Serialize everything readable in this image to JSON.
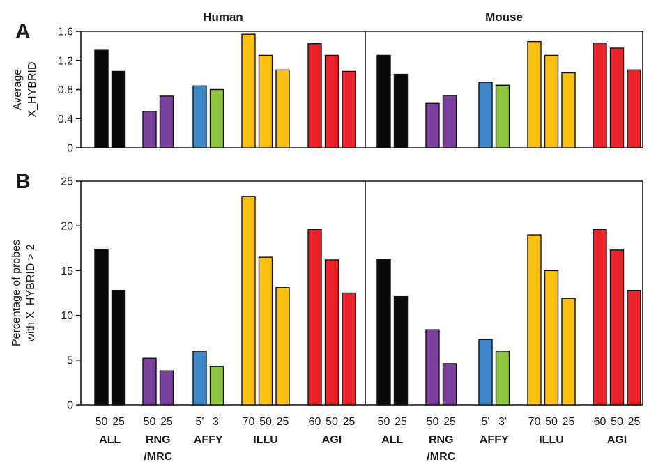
{
  "colors": {
    "ALL": "#0a0a0a",
    "RNG_MRC": "#7b3f9e",
    "AFFY_5": "#3f86c8",
    "AFFY_3": "#8cc63f",
    "ILLU": "#fbbf12",
    "AGI": "#e8232a"
  },
  "icons": [],
  "chart_data": {
    "type": "bar",
    "species": [
      "Human",
      "Mouse"
    ],
    "groups": [
      {
        "label": "ALL",
        "label2": "",
        "bars": [
          {
            "sub": "50",
            "color": "ALL"
          },
          {
            "sub": "25",
            "color": "ALL"
          }
        ]
      },
      {
        "label": "RNG",
        "label2": "/MRC",
        "bars": [
          {
            "sub": "50",
            "color": "RNG_MRC"
          },
          {
            "sub": "25",
            "color": "RNG_MRC"
          }
        ]
      },
      {
        "label": "AFFY",
        "label2": "",
        "bars": [
          {
            "sub": "5'",
            "color": "AFFY_5"
          },
          {
            "sub": "3'",
            "color": "AFFY_3"
          }
        ]
      },
      {
        "label": "ILLU",
        "label2": "",
        "bars": [
          {
            "sub": "70",
            "color": "ILLU"
          },
          {
            "sub": "50",
            "color": "ILLU"
          },
          {
            "sub": "25",
            "color": "ILLU"
          }
        ]
      },
      {
        "label": "AGI",
        "label2": "",
        "bars": [
          {
            "sub": "60",
            "color": "AGI"
          },
          {
            "sub": "50",
            "color": "AGI"
          },
          {
            "sub": "25",
            "color": "AGI"
          }
        ]
      }
    ],
    "panels": [
      {
        "letter": "A",
        "ylabel_lines": [
          "Average",
          "X_HYBRID"
        ],
        "ylim": [
          0,
          1.6
        ],
        "yticks": [
          0,
          0.4,
          0.8,
          1.2,
          1.6
        ],
        "ytick_labels": [
          "0",
          "0.4",
          "0.8",
          "1.2",
          "1.6"
        ],
        "values": {
          "Human": [
            [
              1.34,
              1.05
            ],
            [
              0.5,
              0.71
            ],
            [
              0.85,
              0.8
            ],
            [
              1.56,
              1.27,
              1.07
            ],
            [
              1.43,
              1.27,
              1.05
            ]
          ],
          "Mouse": [
            [
              1.27,
              1.01
            ],
            [
              0.61,
              0.72
            ],
            [
              0.9,
              0.86
            ],
            [
              1.46,
              1.27,
              1.03
            ],
            [
              1.44,
              1.37,
              1.07
            ]
          ]
        }
      },
      {
        "letter": "B",
        "ylabel_lines": [
          "Percentage of probes",
          "with X_HYBRID > 2"
        ],
        "ylim": [
          0,
          25
        ],
        "yticks": [
          0,
          5,
          10,
          15,
          20,
          25
        ],
        "ytick_labels": [
          "0",
          "5",
          "10",
          "15",
          "20",
          "25"
        ],
        "values": {
          "Human": [
            [
              17.4,
              12.8
            ],
            [
              5.2,
              3.8
            ],
            [
              6.0,
              4.3
            ],
            [
              23.3,
              16.5,
              13.1
            ],
            [
              19.6,
              16.2,
              12.5
            ]
          ],
          "Mouse": [
            [
              16.3,
              12.1
            ],
            [
              8.4,
              4.6
            ],
            [
              7.3,
              6.0
            ],
            [
              19.0,
              15.0,
              11.9
            ],
            [
              19.6,
              17.3,
              12.8
            ]
          ]
        }
      }
    ]
  }
}
